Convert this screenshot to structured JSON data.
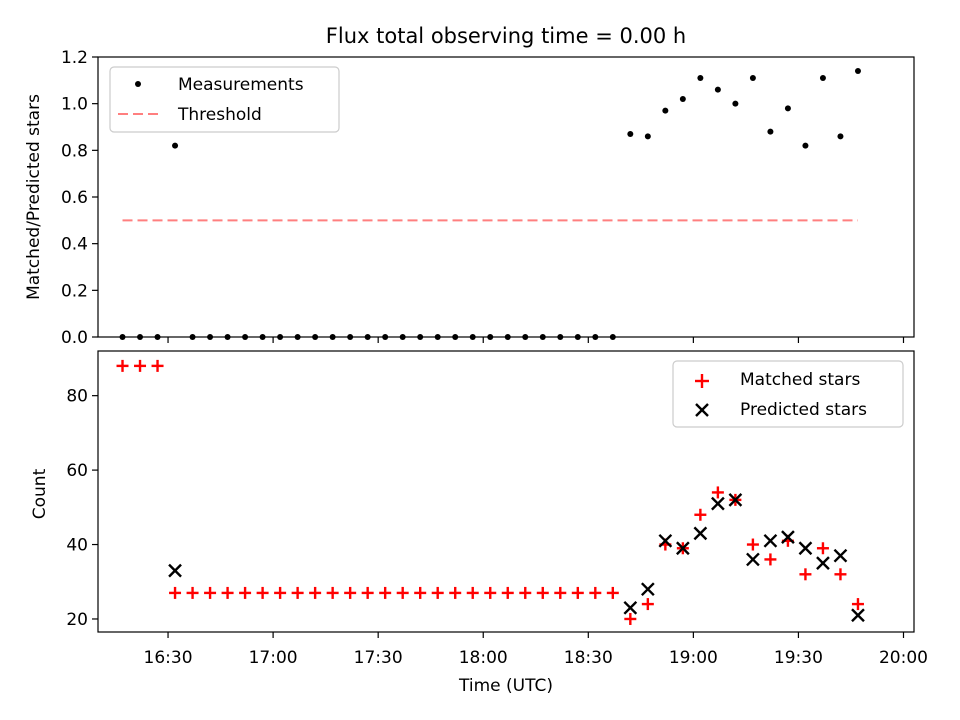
{
  "chart_data": [
    {
      "type": "scatter",
      "title": "Flux total observing time = 0.00 h",
      "ylabel": "Matched/Predicted stars",
      "xlabel": "",
      "xlim_minutes": [
        970,
        1203
      ],
      "ylim": [
        0,
        1.2
      ],
      "yticks": [
        0.0,
        0.2,
        0.4,
        0.6,
        0.8,
        1.0,
        1.2
      ],
      "ytick_labels": [
        "0.0",
        "0.2",
        "0.4",
        "0.6",
        "0.8",
        "1.0",
        "1.2"
      ],
      "legend_placement": "upper-left",
      "series": [
        {
          "name": "Measurements",
          "marker": "dot",
          "color": "#000000",
          "points": [
            [
              977,
              0.0
            ],
            [
              982,
              0.0
            ],
            [
              987,
              0.0
            ],
            [
              992,
              0.82
            ],
            [
              997,
              0.0
            ],
            [
              1002,
              0.0
            ],
            [
              1007,
              0.0
            ],
            [
              1012,
              0.0
            ],
            [
              1017,
              0.0
            ],
            [
              1022,
              0.0
            ],
            [
              1027,
              0.0
            ],
            [
              1032,
              0.0
            ],
            [
              1037,
              0.0
            ],
            [
              1042,
              0.0
            ],
            [
              1047,
              0.0
            ],
            [
              1052,
              0.0
            ],
            [
              1057,
              0.0
            ],
            [
              1062,
              0.0
            ],
            [
              1067,
              0.0
            ],
            [
              1072,
              0.0
            ],
            [
              1077,
              0.0
            ],
            [
              1082,
              0.0
            ],
            [
              1087,
              0.0
            ],
            [
              1092,
              0.0
            ],
            [
              1097,
              0.0
            ],
            [
              1102,
              0.0
            ],
            [
              1107,
              0.0
            ],
            [
              1112,
              0.0
            ],
            [
              1117,
              0.0
            ],
            [
              1122,
              0.87
            ],
            [
              1127,
              0.86
            ],
            [
              1132,
              0.97
            ],
            [
              1137,
              1.02
            ],
            [
              1142,
              1.11
            ],
            [
              1147,
              1.06
            ],
            [
              1152,
              1.0
            ],
            [
              1157,
              1.11
            ],
            [
              1162,
              0.88
            ],
            [
              1167,
              0.98
            ],
            [
              1172,
              0.82
            ],
            [
              1177,
              1.11
            ],
            [
              1182,
              0.86
            ],
            [
              1187,
              1.14
            ]
          ]
        },
        {
          "name": "Threshold",
          "line": "dashed",
          "color": "#ff7f7f",
          "from": [
            977,
            0.5
          ],
          "to": [
            1187,
            0.5
          ]
        }
      ]
    },
    {
      "type": "scatter",
      "title": "",
      "ylabel": "Count",
      "xlabel": "Time (UTC)",
      "xlim_minutes": [
        970,
        1203
      ],
      "ylim": [
        16.5,
        92
      ],
      "yticks": [
        20,
        40,
        60,
        80
      ],
      "ytick_labels": [
        "20",
        "40",
        "60",
        "80"
      ],
      "xticks_minutes": [
        990,
        1020,
        1050,
        1080,
        1110,
        1140,
        1170,
        1200
      ],
      "xtick_labels": [
        "16:30",
        "17:00",
        "17:30",
        "18:00",
        "18:30",
        "19:00",
        "19:30",
        "20:00"
      ],
      "legend_placement": "upper-right",
      "series": [
        {
          "name": "Matched stars",
          "marker": "plus",
          "color": "#ff0000",
          "points": [
            [
              977,
              88
            ],
            [
              982,
              88
            ],
            [
              987,
              88
            ],
            [
              992,
              27
            ],
            [
              997,
              27
            ],
            [
              1002,
              27
            ],
            [
              1007,
              27
            ],
            [
              1012,
              27
            ],
            [
              1017,
              27
            ],
            [
              1022,
              27
            ],
            [
              1027,
              27
            ],
            [
              1032,
              27
            ],
            [
              1037,
              27
            ],
            [
              1042,
              27
            ],
            [
              1047,
              27
            ],
            [
              1052,
              27
            ],
            [
              1057,
              27
            ],
            [
              1062,
              27
            ],
            [
              1067,
              27
            ],
            [
              1072,
              27
            ],
            [
              1077,
              27
            ],
            [
              1082,
              27
            ],
            [
              1087,
              27
            ],
            [
              1092,
              27
            ],
            [
              1097,
              27
            ],
            [
              1102,
              27
            ],
            [
              1107,
              27
            ],
            [
              1112,
              27
            ],
            [
              1117,
              27
            ],
            [
              1122,
              20
            ],
            [
              1127,
              24
            ],
            [
              1132,
              40
            ],
            [
              1137,
              39
            ],
            [
              1142,
              48
            ],
            [
              1147,
              54
            ],
            [
              1152,
              52
            ],
            [
              1157,
              40
            ],
            [
              1162,
              36
            ],
            [
              1167,
              41
            ],
            [
              1172,
              32
            ],
            [
              1177,
              39
            ],
            [
              1182,
              32
            ],
            [
              1187,
              24
            ]
          ]
        },
        {
          "name": "Predicted stars",
          "marker": "x",
          "color": "#000000",
          "points": [
            [
              992,
              33
            ],
            [
              1122,
              23
            ],
            [
              1127,
              28
            ],
            [
              1132,
              41
            ],
            [
              1137,
              39
            ],
            [
              1142,
              43
            ],
            [
              1147,
              51
            ],
            [
              1152,
              52
            ],
            [
              1157,
              36
            ],
            [
              1162,
              41
            ],
            [
              1167,
              42
            ],
            [
              1172,
              39
            ],
            [
              1177,
              35
            ],
            [
              1182,
              37
            ],
            [
              1187,
              21
            ]
          ]
        }
      ]
    }
  ]
}
